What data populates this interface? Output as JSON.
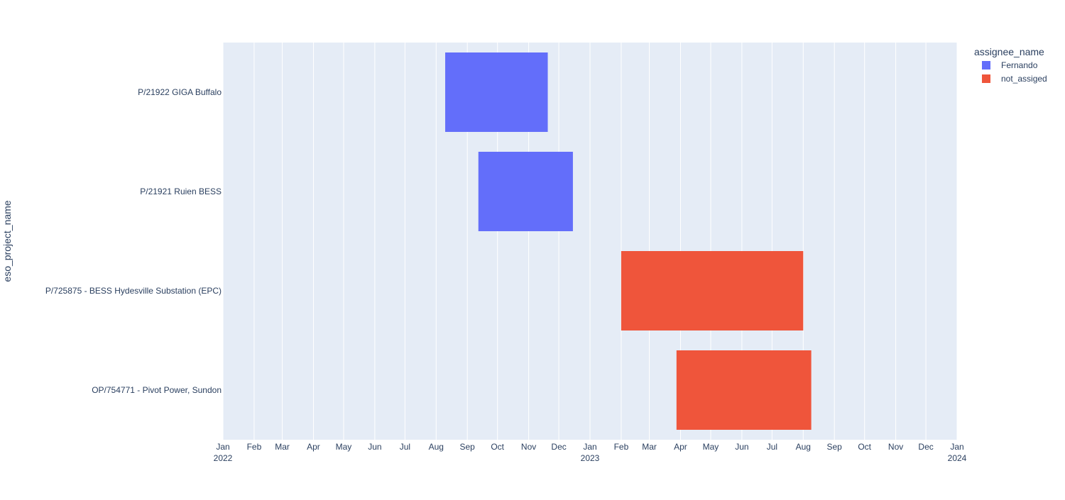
{
  "chart_data": {
    "type": "bar",
    "orientation": "horizontal-timeline",
    "title": "",
    "xlabel": "",
    "ylabel": "eso_project_name",
    "xlim": [
      "2022-01-01",
      "2024-01-01"
    ],
    "x_ticks": [
      {
        "date": "2022-01-01",
        "label": "Jan",
        "year": "2022"
      },
      {
        "date": "2022-02-01",
        "label": "Feb",
        "year": ""
      },
      {
        "date": "2022-03-01",
        "label": "Mar",
        "year": ""
      },
      {
        "date": "2022-04-01",
        "label": "Apr",
        "year": ""
      },
      {
        "date": "2022-05-01",
        "label": "May",
        "year": ""
      },
      {
        "date": "2022-06-01",
        "label": "Jun",
        "year": ""
      },
      {
        "date": "2022-07-01",
        "label": "Jul",
        "year": ""
      },
      {
        "date": "2022-08-01",
        "label": "Aug",
        "year": ""
      },
      {
        "date": "2022-09-01",
        "label": "Sep",
        "year": ""
      },
      {
        "date": "2022-10-01",
        "label": "Oct",
        "year": ""
      },
      {
        "date": "2022-11-01",
        "label": "Nov",
        "year": ""
      },
      {
        "date": "2022-12-01",
        "label": "Dec",
        "year": ""
      },
      {
        "date": "2023-01-01",
        "label": "Jan",
        "year": "2023"
      },
      {
        "date": "2023-02-01",
        "label": "Feb",
        "year": ""
      },
      {
        "date": "2023-03-01",
        "label": "Mar",
        "year": ""
      },
      {
        "date": "2023-04-01",
        "label": "Apr",
        "year": ""
      },
      {
        "date": "2023-05-01",
        "label": "May",
        "year": ""
      },
      {
        "date": "2023-06-01",
        "label": "Jun",
        "year": ""
      },
      {
        "date": "2023-07-01",
        "label": "Jul",
        "year": ""
      },
      {
        "date": "2023-08-01",
        "label": "Aug",
        "year": ""
      },
      {
        "date": "2023-09-01",
        "label": "Sep",
        "year": ""
      },
      {
        "date": "2023-10-01",
        "label": "Oct",
        "year": ""
      },
      {
        "date": "2023-11-01",
        "label": "Nov",
        "year": ""
      },
      {
        "date": "2023-12-01",
        "label": "Dec",
        "year": ""
      },
      {
        "date": "2024-01-01",
        "label": "Jan",
        "year": "2024"
      }
    ],
    "categories": [
      "P/21922 GIGA Buffalo",
      "P/21921 Ruien BESS",
      "P/725875 - BESS Hydesville Substation (EPC)",
      "OP/754771 - Pivot Power, Sundon"
    ],
    "tasks": [
      {
        "project": "P/21922 GIGA Buffalo",
        "start": "2022-08-10",
        "end": "2022-11-20",
        "assignee": "Fernando"
      },
      {
        "project": "P/21921 Ruien BESS",
        "start": "2022-09-12",
        "end": "2022-12-15",
        "assignee": "Fernando"
      },
      {
        "project": "P/725875 - BESS Hydesville Substation (EPC)",
        "start": "2023-02-01",
        "end": "2023-08-01",
        "assignee": "not_assiged"
      },
      {
        "project": "OP/754771 - Pivot Power, Sundon",
        "start": "2023-03-28",
        "end": "2023-08-09",
        "assignee": "not_assiged"
      }
    ],
    "grid": true,
    "legend": {
      "title": "assignee_name",
      "placement": "top-right",
      "entries": [
        {
          "name": "Fernando",
          "color": "#636efa"
        },
        {
          "name": "not_assiged",
          "color": "#ef553b"
        }
      ]
    },
    "colors": {
      "plot_background": "#e5ecf6",
      "grid": "#ffffff",
      "text": "#2a3f5f"
    }
  }
}
